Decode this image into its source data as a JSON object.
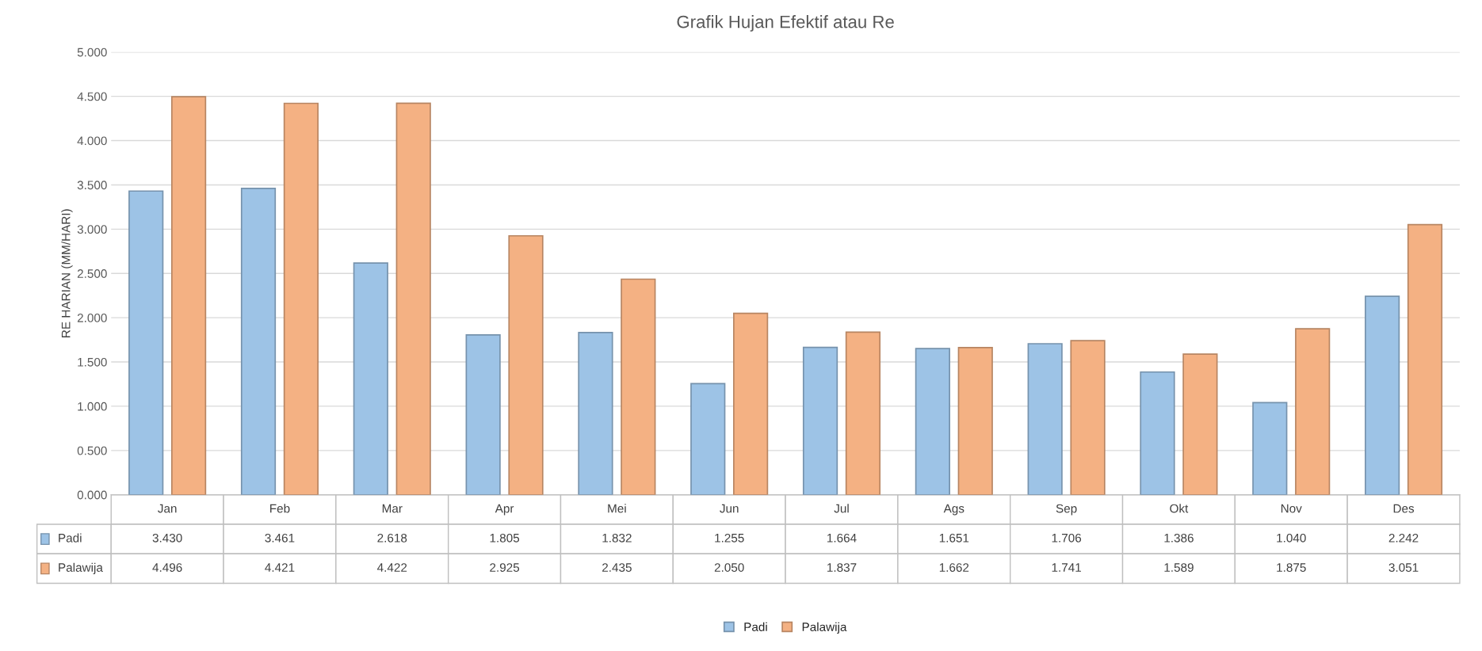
{
  "chart_data": {
    "type": "bar",
    "title": "Grafik Hujan Efektif atau Re",
    "ylabel": "RE HARIAN (MM/HARI)",
    "categories": [
      "Jan",
      "Feb",
      "Mar",
      "Apr",
      "Mei",
      "Jun",
      "Jul",
      "Ags",
      "Sep",
      "Okt",
      "Nov",
      "Des"
    ],
    "series": [
      {
        "name": "Padi",
        "color": "#9dc3e6",
        "values": [
          3.43,
          3.461,
          2.618,
          1.805,
          1.832,
          1.255,
          1.664,
          1.651,
          1.706,
          1.386,
          1.04,
          2.242
        ],
        "value_labels": [
          "3.430",
          "3.461",
          "2.618",
          "1.805",
          "1.832",
          "1.255",
          "1.664",
          "1.651",
          "1.706",
          "1.386",
          "1.040",
          "2.242"
        ]
      },
      {
        "name": "Palawija",
        "color": "#f4b183",
        "values": [
          4.496,
          4.421,
          4.422,
          2.925,
          2.435,
          2.05,
          1.837,
          1.662,
          1.741,
          1.589,
          1.875,
          3.051
        ],
        "value_labels": [
          "4.496",
          "4.421",
          "4.422",
          "2.925",
          "2.435",
          "2.050",
          "1.837",
          "1.662",
          "1.741",
          "1.589",
          "1.875",
          "3.051"
        ]
      }
    ],
    "ylim": [
      0,
      5
    ],
    "yticks": [
      {
        "value": 0,
        "label": "0.000"
      },
      {
        "value": 0.5,
        "label": "0.500"
      },
      {
        "value": 1,
        "label": "1.000"
      },
      {
        "value": 1.5,
        "label": "1.500"
      },
      {
        "value": 2,
        "label": "2.000"
      },
      {
        "value": 2.5,
        "label": "2.500"
      },
      {
        "value": 3,
        "label": "3.000"
      },
      {
        "value": 3.5,
        "label": "3.500"
      },
      {
        "value": 4,
        "label": "4.000"
      },
      {
        "value": 4.5,
        "label": "4.500"
      },
      {
        "value": 5,
        "label": "5.000"
      }
    ],
    "grid": "y",
    "legend": "bottom"
  }
}
